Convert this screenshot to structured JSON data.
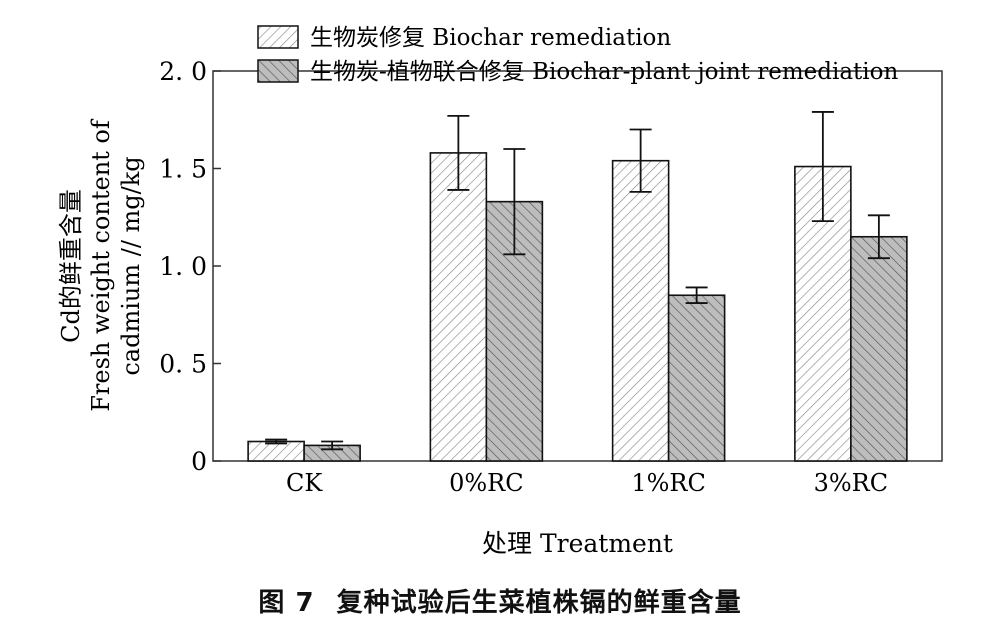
{
  "caption": {
    "figure_label": "图 7",
    "text": "复种试验后生菜植株镉的鲜重含量"
  },
  "chart_data": {
    "type": "bar",
    "xlabel": "处理 Treatment",
    "ylabel_lines": [
      "Cd的鲜重含量",
      "Fresh weight content of",
      "cadmium // mg/kg"
    ],
    "categories": [
      "CK",
      "0%RC",
      "1%RC",
      "3%RC"
    ],
    "ylim": [
      0,
      2.0
    ],
    "yticks": [
      0,
      0.5,
      1.0,
      1.5,
      2.0
    ],
    "ytick_labels": [
      "0",
      "0. 5",
      "1. 0",
      "1. 5",
      "2. 0"
    ],
    "grid": false,
    "legend_position": "top",
    "series": [
      {
        "name": "生物炭修复 Biochar remediation",
        "pattern": "diagonal-light",
        "fill": "#ffffff",
        "stroke": "#888888",
        "values": [
          0.1,
          1.58,
          1.54,
          1.51
        ],
        "errors": [
          0.01,
          0.19,
          0.16,
          0.28
        ]
      },
      {
        "name": "生物炭-植物联合修复 Biochar-plant joint remediation",
        "pattern": "diagonal-dark",
        "fill": "#bdbdbd",
        "stroke": "#555555",
        "values": [
          0.08,
          1.33,
          0.85,
          1.15
        ],
        "errors": [
          0.02,
          0.27,
          0.04,
          0.11
        ]
      }
    ]
  }
}
